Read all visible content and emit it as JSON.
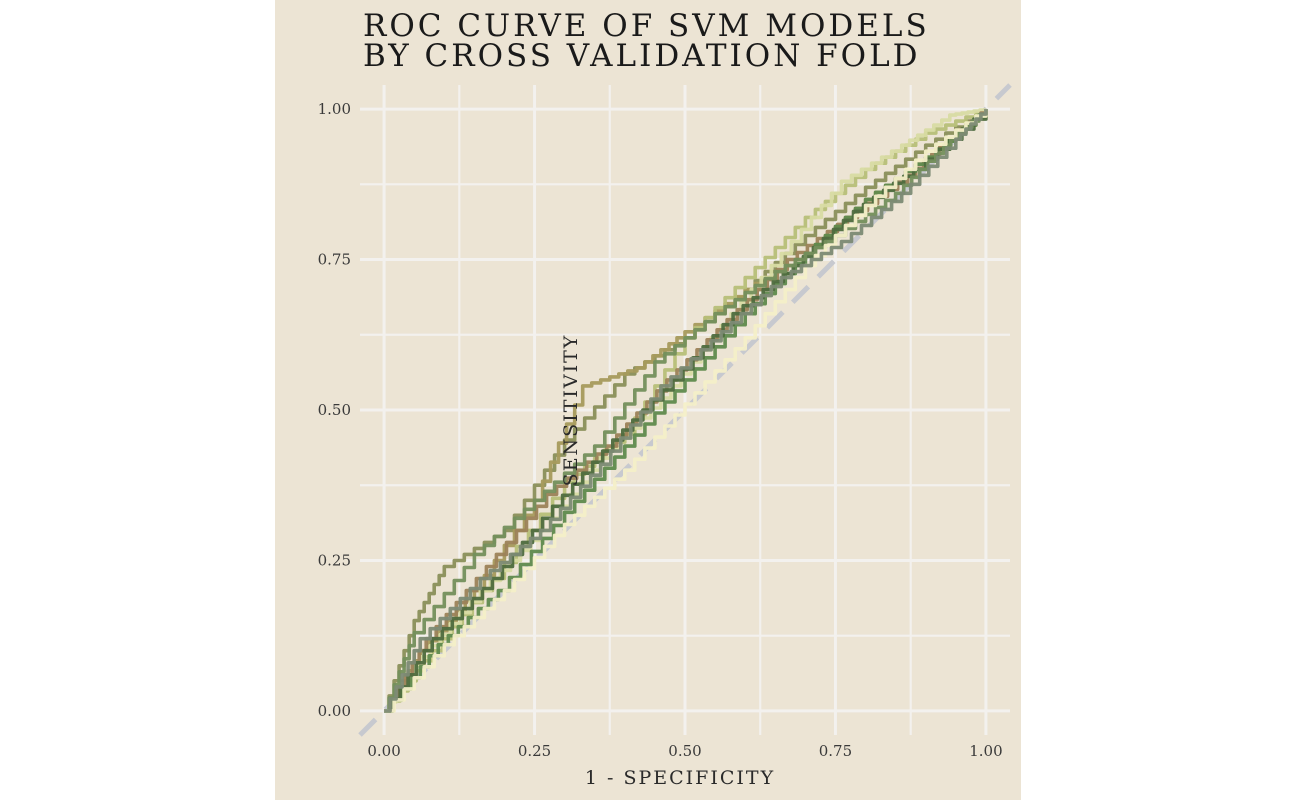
{
  "chart_data": {
    "type": "line",
    "title_lines": [
      "ROC CURVE OF SVM MODELS",
      "BY CROSS VALIDATION FOLD"
    ],
    "xlabel": "1 - SPECIFICITY",
    "ylabel": "SENSITIVITY",
    "xlim": [
      -0.04,
      1.04
    ],
    "ylim": [
      -0.04,
      1.04
    ],
    "x_ticks": [
      0.0,
      0.25,
      0.5,
      0.75,
      1.0
    ],
    "y_ticks": [
      0.0,
      0.25,
      0.5,
      0.75,
      1.0
    ],
    "x_tick_labels": [
      "0.00",
      "0.25",
      "0.50",
      "0.75",
      "1.00"
    ],
    "y_tick_labels": [
      "0.00",
      "0.25",
      "0.50",
      "0.75",
      "1.00"
    ],
    "grid": true,
    "reference_line": {
      "from": [
        0,
        0
      ],
      "to": [
        1,
        1
      ],
      "style": "dashed",
      "color": "#c7c9cf"
    },
    "series": [
      {
        "color": "#8a8f5a",
        "points": [
          [
            0,
            0
          ],
          [
            0.05,
            0.15
          ],
          [
            0.1,
            0.24
          ],
          [
            0.2,
            0.3
          ],
          [
            0.3,
            0.45
          ],
          [
            0.4,
            0.56
          ],
          [
            0.5,
            0.62
          ],
          [
            0.6,
            0.7
          ],
          [
            0.7,
            0.79
          ],
          [
            0.8,
            0.87
          ],
          [
            0.9,
            0.94
          ],
          [
            1,
            1
          ]
        ]
      },
      {
        "color": "#a69a5c",
        "points": [
          [
            0,
            0
          ],
          [
            0.06,
            0.1
          ],
          [
            0.15,
            0.2
          ],
          [
            0.25,
            0.35
          ],
          [
            0.33,
            0.54
          ],
          [
            0.42,
            0.57
          ],
          [
            0.5,
            0.63
          ],
          [
            0.6,
            0.7
          ],
          [
            0.7,
            0.76
          ],
          [
            0.8,
            0.85
          ],
          [
            0.9,
            0.92
          ],
          [
            1,
            1
          ]
        ]
      },
      {
        "color": "#b7bf78",
        "points": [
          [
            0,
            0
          ],
          [
            0.08,
            0.1
          ],
          [
            0.18,
            0.22
          ],
          [
            0.3,
            0.38
          ],
          [
            0.4,
            0.46
          ],
          [
            0.5,
            0.62
          ],
          [
            0.6,
            0.72
          ],
          [
            0.7,
            0.82
          ],
          [
            0.8,
            0.9
          ],
          [
            0.9,
            0.96
          ],
          [
            1,
            1
          ]
        ]
      },
      {
        "color": "#d8dba3",
        "points": [
          [
            0,
            0
          ],
          [
            0.06,
            0.09
          ],
          [
            0.16,
            0.2
          ],
          [
            0.26,
            0.3
          ],
          [
            0.36,
            0.42
          ],
          [
            0.46,
            0.52
          ],
          [
            0.56,
            0.64
          ],
          [
            0.66,
            0.76
          ],
          [
            0.76,
            0.88
          ],
          [
            0.86,
            0.94
          ],
          [
            0.94,
            0.99
          ],
          [
            1,
            1
          ]
        ]
      },
      {
        "color": "#9c8258",
        "points": [
          [
            0,
            0
          ],
          [
            0.07,
            0.12
          ],
          [
            0.17,
            0.24
          ],
          [
            0.27,
            0.36
          ],
          [
            0.37,
            0.44
          ],
          [
            0.47,
            0.55
          ],
          [
            0.57,
            0.65
          ],
          [
            0.67,
            0.75
          ],
          [
            0.77,
            0.82
          ],
          [
            0.87,
            0.89
          ],
          [
            0.95,
            0.96
          ],
          [
            1,
            1
          ]
        ]
      },
      {
        "color": "#5f8a4d",
        "points": [
          [
            0,
            0
          ],
          [
            0.09,
            0.11
          ],
          [
            0.19,
            0.2
          ],
          [
            0.3,
            0.33
          ],
          [
            0.4,
            0.44
          ],
          [
            0.5,
            0.55
          ],
          [
            0.6,
            0.66
          ],
          [
            0.7,
            0.76
          ],
          [
            0.8,
            0.85
          ],
          [
            0.9,
            0.92
          ],
          [
            1,
            1
          ]
        ]
      },
      {
        "color": "#4e6b3e",
        "points": [
          [
            0,
            0
          ],
          [
            0.08,
            0.12
          ],
          [
            0.18,
            0.22
          ],
          [
            0.28,
            0.34
          ],
          [
            0.38,
            0.45
          ],
          [
            0.48,
            0.55
          ],
          [
            0.58,
            0.66
          ],
          [
            0.68,
            0.74
          ],
          [
            0.78,
            0.83
          ],
          [
            0.88,
            0.9
          ],
          [
            1,
            1
          ]
        ]
      },
      {
        "color": "#748f5c",
        "points": [
          [
            0,
            0
          ],
          [
            0.05,
            0.13
          ],
          [
            0.15,
            0.26
          ],
          [
            0.25,
            0.35
          ],
          [
            0.35,
            0.44
          ],
          [
            0.45,
            0.58
          ],
          [
            0.55,
            0.66
          ],
          [
            0.65,
            0.73
          ],
          [
            0.75,
            0.79
          ],
          [
            0.85,
            0.86
          ],
          [
            0.93,
            0.94
          ],
          [
            1,
            1
          ]
        ]
      },
      {
        "color": "#f4efc8",
        "points": [
          [
            0,
            0
          ],
          [
            0.1,
            0.11
          ],
          [
            0.2,
            0.2
          ],
          [
            0.3,
            0.31
          ],
          [
            0.4,
            0.4
          ],
          [
            0.5,
            0.51
          ],
          [
            0.6,
            0.62
          ],
          [
            0.7,
            0.74
          ],
          [
            0.8,
            0.84
          ],
          [
            0.9,
            0.93
          ],
          [
            1,
            1
          ]
        ]
      },
      {
        "color": "#7c8a74",
        "points": [
          [
            0,
            0
          ],
          [
            0.06,
            0.12
          ],
          [
            0.16,
            0.22
          ],
          [
            0.26,
            0.3
          ],
          [
            0.36,
            0.41
          ],
          [
            0.46,
            0.54
          ],
          [
            0.56,
            0.63
          ],
          [
            0.66,
            0.72
          ],
          [
            0.76,
            0.78
          ],
          [
            0.86,
            0.86
          ],
          [
            0.95,
            0.95
          ],
          [
            1,
            1
          ]
        ]
      }
    ]
  }
}
